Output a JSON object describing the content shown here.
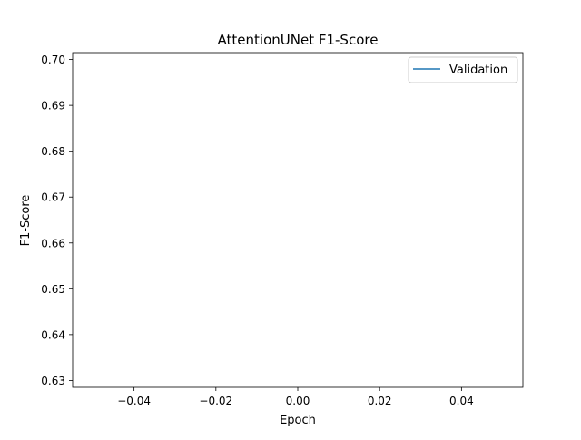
{
  "chart_data": {
    "type": "line",
    "title": "AttentionUNet F1-Score",
    "xlabel": "Epoch",
    "ylabel": "F1-Score",
    "xlim": [
      -0.055,
      0.055
    ],
    "ylim": [
      0.6285,
      0.7015
    ],
    "x_ticks": [
      -0.04,
      -0.02,
      0.0,
      0.02,
      0.04
    ],
    "x_tick_labels": [
      "−0.04",
      "−0.02",
      "0.00",
      "0.02",
      "0.04"
    ],
    "y_ticks": [
      0.63,
      0.64,
      0.65,
      0.66,
      0.67,
      0.68,
      0.69,
      0.7
    ],
    "y_tick_labels": [
      "0.63",
      "0.64",
      "0.65",
      "0.66",
      "0.67",
      "0.68",
      "0.69",
      "0.70"
    ],
    "grid": false,
    "legend_position": "top-right",
    "series": [
      {
        "name": "Validation",
        "color": "#1f77b4",
        "x": [],
        "y": []
      }
    ]
  }
}
